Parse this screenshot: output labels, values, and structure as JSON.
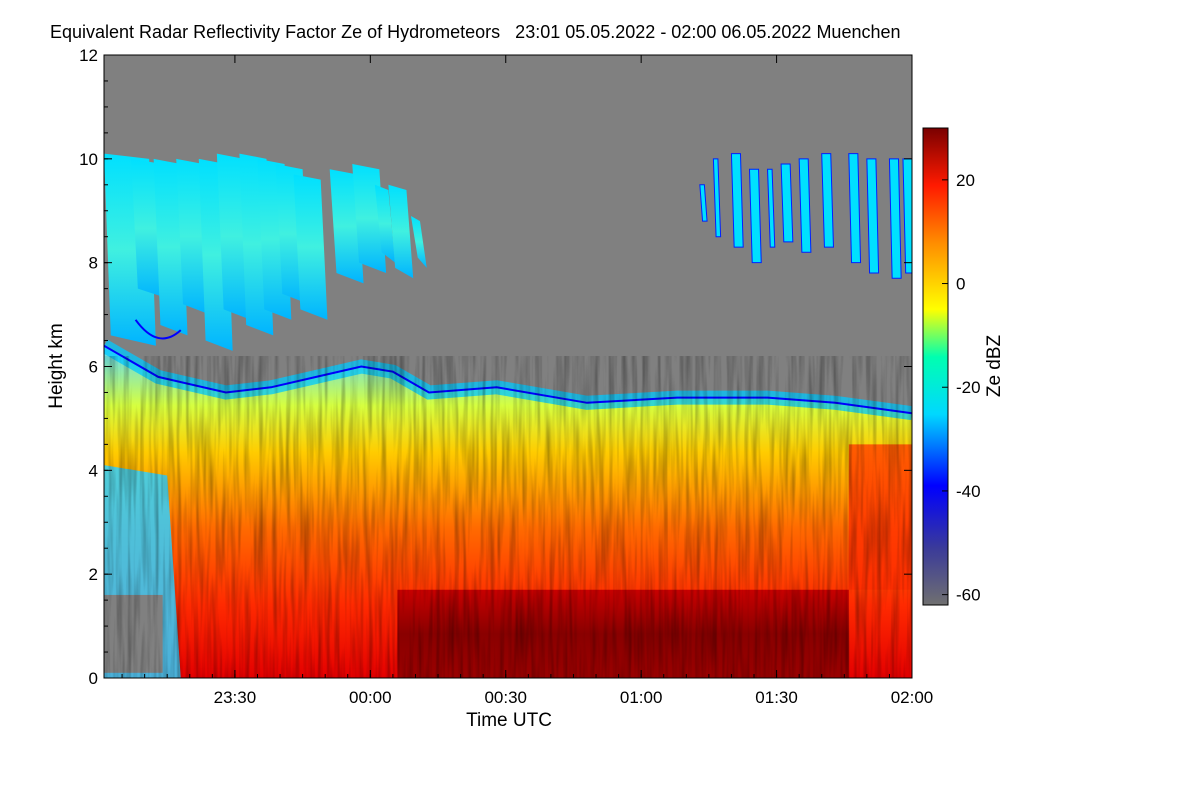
{
  "chart_data": {
    "type": "heatmap",
    "title": "Equivalent Radar Reflectivity Factor Ze of Hydrometeors   23:01 05.05.2022 - 02:00 06.05.2022 Muenchen",
    "xlabel": "Time UTC",
    "ylabel": "Height km",
    "x_range_minutes_utc": [
      1381,
      1560
    ],
    "x_ticks": [
      {
        "minute": 1410,
        "label": "23:30"
      },
      {
        "minute": 1440,
        "label": "00:00"
      },
      {
        "minute": 1470,
        "label": "00:30"
      },
      {
        "minute": 1500,
        "label": "01:00"
      },
      {
        "minute": 1530,
        "label": "01:30"
      },
      {
        "minute": 1560,
        "label": "02:00"
      }
    ],
    "ylim": [
      0,
      12
    ],
    "y_ticks": [
      0,
      2,
      4,
      6,
      8,
      10,
      12
    ],
    "colorbar": {
      "label": "Ze dBZ",
      "range": [
        -62,
        30
      ],
      "ticks": [
        -60,
        -40,
        -20,
        0,
        20
      ],
      "colors": [
        "#6e6e6e",
        "#0000ff",
        "#00ffff",
        "#ffff00",
        "#ff7f00",
        "#ff0000",
        "#7f0000"
      ]
    },
    "background_color": "#808080",
    "features": {
      "cirrus_top_km": 10.1,
      "melting_layer_top_km": 6.0,
      "precipitation_core_km": [
        0,
        1.7
      ],
      "precipitation_core_ze_dbz": 30
    }
  }
}
